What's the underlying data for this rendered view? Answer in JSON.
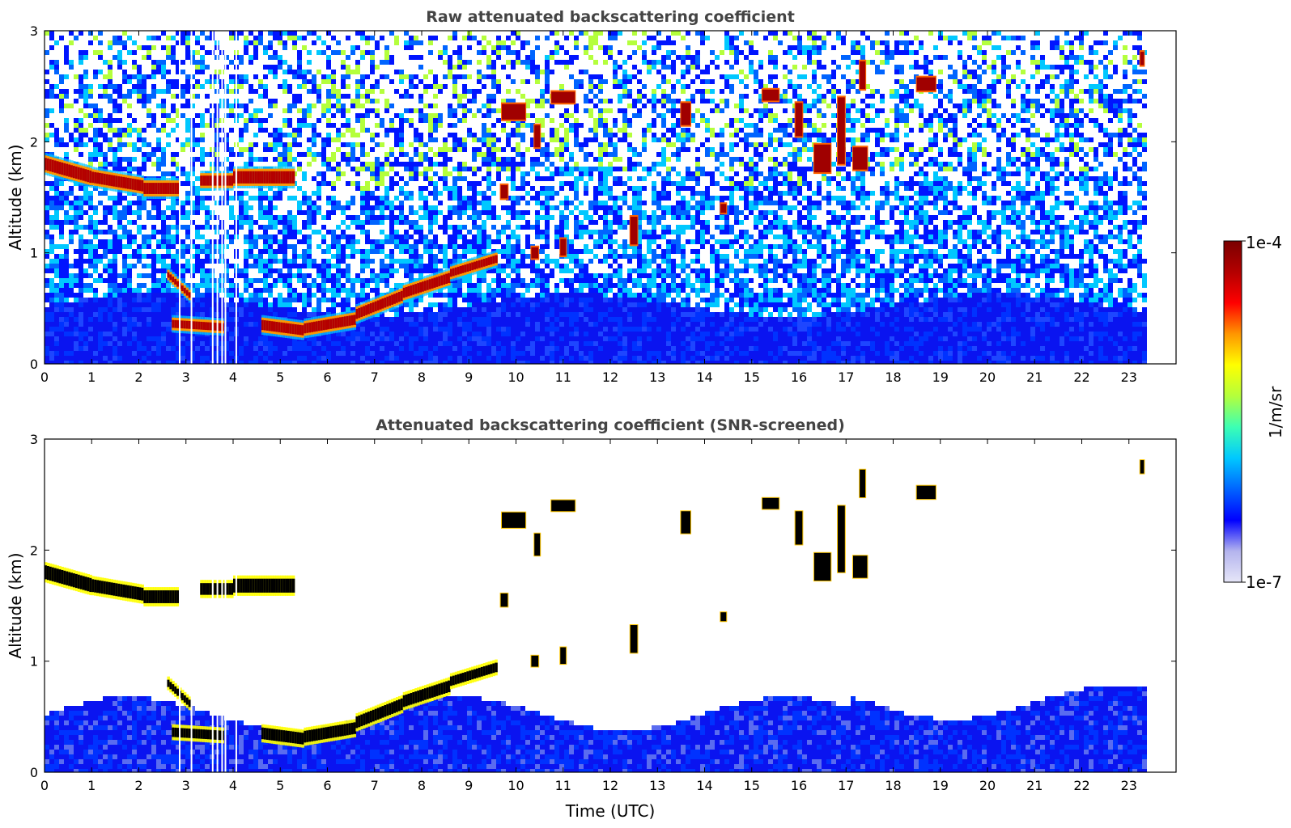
{
  "chart_data": {
    "type": "heatmap",
    "colorbar": {
      "label": "1/m/sr",
      "min_label": "1e-7",
      "max_label": "1e-4",
      "min": 1e-07,
      "max": 0.0001,
      "scale": "log",
      "colormap": [
        "#e6e6f8",
        "#b4b4ee",
        "#0000ff",
        "#0064ff",
        "#00c8ff",
        "#3cffb4",
        "#b4ff3c",
        "#ffff00",
        "#ff9600",
        "#ff0000",
        "#b40000",
        "#7a0000"
      ]
    },
    "panels": [
      {
        "title": "Raw attenuated backscattering coefficient",
        "ylabel": "Altitude (km)",
        "xlabel": "",
        "xlim": [
          0,
          24
        ],
        "ylim": [
          0,
          3
        ],
        "xticks": [
          "0",
          "1",
          "2",
          "3",
          "4",
          "5",
          "6",
          "7",
          "8",
          "9",
          "10",
          "11",
          "12",
          "13",
          "14",
          "15",
          "16",
          "17",
          "18",
          "19",
          "20",
          "21",
          "22",
          "23"
        ],
        "yticks": [
          "0",
          "1",
          "2",
          "3"
        ],
        "data_end_hour": 23.3,
        "cloud_layers": [
          {
            "t0": 0.0,
            "t1": 1.0,
            "alt0": 1.8,
            "alt1": 1.68,
            "thickness_km": 0.14
          },
          {
            "t0": 1.0,
            "t1": 2.1,
            "alt0": 1.68,
            "alt1": 1.6,
            "thickness_km": 0.13
          },
          {
            "t0": 2.1,
            "t1": 2.85,
            "alt0": 1.58,
            "alt1": 1.58,
            "thickness_km": 0.13
          },
          {
            "t0": 3.3,
            "t1": 4.0,
            "alt0": 1.65,
            "alt1": 1.65,
            "thickness_km": 0.12
          },
          {
            "t0": 4.0,
            "t1": 5.3,
            "alt0": 1.68,
            "alt1": 1.68,
            "thickness_km": 0.14
          },
          {
            "t0": 2.6,
            "t1": 3.1,
            "alt0": 0.8,
            "alt1": 0.6,
            "thickness_km": 0.08
          },
          {
            "t0": 2.7,
            "t1": 3.8,
            "alt0": 0.36,
            "alt1": 0.33,
            "thickness_km": 0.1
          },
          {
            "t0": 4.6,
            "t1": 5.5,
            "alt0": 0.35,
            "alt1": 0.3,
            "thickness_km": 0.12
          },
          {
            "t0": 5.5,
            "t1": 6.6,
            "alt0": 0.32,
            "alt1": 0.4,
            "thickness_km": 0.12
          },
          {
            "t0": 6.6,
            "t1": 7.6,
            "alt0": 0.45,
            "alt1": 0.62,
            "thickness_km": 0.12
          },
          {
            "t0": 7.6,
            "t1": 8.6,
            "alt0": 0.64,
            "alt1": 0.78,
            "thickness_km": 0.12
          },
          {
            "t0": 8.6,
            "t1": 9.6,
            "alt0": 0.82,
            "alt1": 0.95,
            "thickness_km": 0.1
          }
        ],
        "cloud_patches": [
          {
            "t": 9.95,
            "alt": 2.27,
            "dt": 0.5,
            "dalt": 0.14
          },
          {
            "t": 10.45,
            "alt": 2.05,
            "dt": 0.12,
            "dalt": 0.2
          },
          {
            "t": 11.0,
            "alt": 2.4,
            "dt": 0.5,
            "dalt": 0.1
          },
          {
            "t": 12.5,
            "alt": 1.2,
            "dt": 0.15,
            "dalt": 0.25
          },
          {
            "t": 13.6,
            "alt": 2.25,
            "dt": 0.2,
            "dalt": 0.2
          },
          {
            "t": 15.4,
            "alt": 2.42,
            "dt": 0.35,
            "dalt": 0.1
          },
          {
            "t": 16.0,
            "alt": 2.2,
            "dt": 0.15,
            "dalt": 0.3
          },
          {
            "t": 16.5,
            "alt": 1.85,
            "dt": 0.35,
            "dalt": 0.25
          },
          {
            "t": 16.9,
            "alt": 2.1,
            "dt": 0.15,
            "dalt": 0.6
          },
          {
            "t": 17.3,
            "alt": 1.85,
            "dt": 0.3,
            "dalt": 0.2
          },
          {
            "t": 17.35,
            "alt": 2.6,
            "dt": 0.12,
            "dalt": 0.25
          },
          {
            "t": 18.7,
            "alt": 2.52,
            "dt": 0.4,
            "dalt": 0.12
          },
          {
            "t": 23.28,
            "alt": 2.75,
            "dt": 0.08,
            "dalt": 0.12
          },
          {
            "t": 9.75,
            "alt": 1.55,
            "dt": 0.15,
            "dalt": 0.12
          },
          {
            "t": 14.4,
            "alt": 1.4,
            "dt": 0.12,
            "dalt": 0.08
          },
          {
            "t": 10.4,
            "alt": 1.0,
            "dt": 0.15,
            "dalt": 0.1
          },
          {
            "t": 11.0,
            "alt": 1.05,
            "dt": 0.12,
            "dalt": 0.15
          }
        ]
      },
      {
        "title": "Attenuated backscattering coefficient (SNR-screened)",
        "ylabel": "Altitude (km)",
        "xlabel": "Time (UTC)",
        "xlim": [
          0,
          24
        ],
        "ylim": [
          0,
          3
        ],
        "xticks": [
          "0",
          "1",
          "2",
          "3",
          "4",
          "5",
          "6",
          "7",
          "8",
          "9",
          "10",
          "11",
          "12",
          "13",
          "14",
          "15",
          "16",
          "17",
          "18",
          "19",
          "20",
          "21",
          "22",
          "23"
        ],
        "yticks": [
          "0",
          "1",
          "2",
          "3"
        ],
        "data_end_hour": 23.3
      }
    ]
  }
}
